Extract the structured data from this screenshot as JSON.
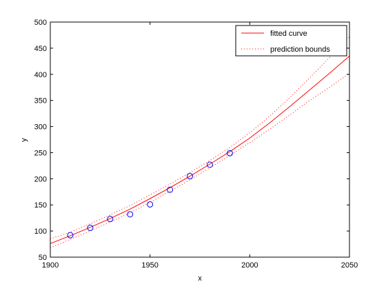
{
  "chart_data": {
    "type": "scatter",
    "xlabel": "x",
    "ylabel": "y",
    "xlim": [
      1900,
      2050
    ],
    "ylim": [
      50,
      500
    ],
    "x_ticks": [
      1900,
      1950,
      2000,
      2050
    ],
    "y_ticks": [
      50,
      100,
      150,
      200,
      250,
      300,
      350,
      400,
      450,
      500
    ],
    "grid": false,
    "legend_placement": "top-right",
    "series": [
      {
        "name": "",
        "kind": "markers",
        "marker": "circle",
        "color": "#0000ff",
        "x": [
          1910,
          1920,
          1930,
          1940,
          1950,
          1960,
          1970,
          1980,
          1990
        ],
        "y": [
          92,
          106,
          123,
          132,
          151,
          179,
          205,
          227,
          249
        ]
      },
      {
        "name": "fitted curve",
        "kind": "line",
        "color": "#ff0000",
        "dash": "solid",
        "x": [
          1900,
          1910,
          1920,
          1930,
          1940,
          1950,
          1960,
          1970,
          1980,
          1990,
          2000,
          2010,
          2020,
          2030,
          2040,
          2050
        ],
        "y": [
          76,
          91,
          107,
          124,
          142,
          162,
          183,
          205,
          228,
          252,
          278,
          307,
          338,
          370,
          402,
          435
        ]
      },
      {
        "name": "prediction bounds",
        "kind": "line",
        "color": "#ff0000",
        "dash": "dotted",
        "x": [
          1900,
          1910,
          1920,
          1930,
          1940,
          1950,
          1960,
          1970,
          1980,
          1990,
          2000,
          2010,
          2020,
          2030,
          2040,
          2050
        ],
        "y": [
          85,
          98,
          114,
          131,
          149,
          169,
          190,
          212,
          235,
          260,
          288,
          320,
          355,
          393,
          432,
          472
        ]
      },
      {
        "name": "",
        "kind": "line",
        "color": "#ff0000",
        "dash": "dotted",
        "x": [
          1900,
          1910,
          1920,
          1930,
          1940,
          1950,
          1960,
          1970,
          1980,
          1990,
          2000,
          2010,
          2020,
          2030,
          2040,
          2050
        ],
        "y": [
          68,
          84,
          100,
          117,
          135,
          155,
          176,
          198,
          221,
          245,
          269,
          295,
          322,
          350,
          375,
          402
        ]
      }
    ],
    "legend": [
      {
        "label": "fitted curve",
        "color": "#ff0000",
        "dash": "solid"
      },
      {
        "label": "prediction bounds",
        "color": "#ff0000",
        "dash": "dotted"
      }
    ]
  }
}
